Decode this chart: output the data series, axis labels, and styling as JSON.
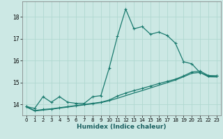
{
  "title": "",
  "xlabel": "Humidex (Indice chaleur)",
  "bg_color": "#cce8e4",
  "grid_color": "#b0d8d0",
  "line_color": "#1a7a6e",
  "xlim": [
    -0.5,
    23.5
  ],
  "ylim": [
    13.5,
    18.7
  ],
  "yticks": [
    14,
    15,
    16,
    17,
    18
  ],
  "xticks": [
    0,
    1,
    2,
    3,
    4,
    5,
    6,
    7,
    8,
    9,
    10,
    11,
    12,
    13,
    14,
    15,
    16,
    17,
    18,
    19,
    20,
    21,
    22,
    23
  ],
  "line1_x": [
    0,
    1,
    2,
    3,
    4,
    5,
    6,
    7,
    8,
    9,
    10,
    11,
    12,
    13,
    14,
    15,
    16,
    17,
    18,
    19,
    20,
    21,
    22,
    23
  ],
  "line1_y": [
    13.9,
    13.82,
    14.35,
    14.1,
    14.35,
    14.1,
    14.05,
    14.05,
    14.35,
    14.4,
    15.65,
    17.1,
    18.35,
    17.45,
    17.55,
    17.2,
    17.3,
    17.15,
    16.8,
    15.95,
    15.85,
    15.45,
    15.3,
    15.3
  ],
  "line2_x": [
    0,
    1,
    2,
    3,
    4,
    5,
    6,
    7,
    8,
    9,
    10,
    11,
    12,
    13,
    14,
    15,
    16,
    17,
    18,
    19,
    20,
    21,
    22,
    23
  ],
  "line2_y": [
    13.9,
    13.72,
    13.77,
    13.8,
    13.85,
    13.9,
    13.95,
    14.0,
    14.05,
    14.1,
    14.2,
    14.38,
    14.52,
    14.63,
    14.73,
    14.84,
    14.95,
    15.05,
    15.15,
    15.3,
    15.48,
    15.52,
    15.32,
    15.3
  ],
  "line3_x": [
    0,
    1,
    2,
    3,
    4,
    5,
    6,
    7,
    8,
    9,
    10,
    11,
    12,
    13,
    14,
    15,
    16,
    17,
    18,
    19,
    20,
    21,
    22,
    23
  ],
  "line3_y": [
    13.88,
    13.7,
    13.74,
    13.78,
    13.83,
    13.88,
    13.93,
    13.98,
    14.03,
    14.08,
    14.17,
    14.28,
    14.4,
    14.52,
    14.63,
    14.75,
    14.87,
    14.99,
    15.11,
    15.26,
    15.42,
    15.46,
    15.26,
    15.25
  ]
}
